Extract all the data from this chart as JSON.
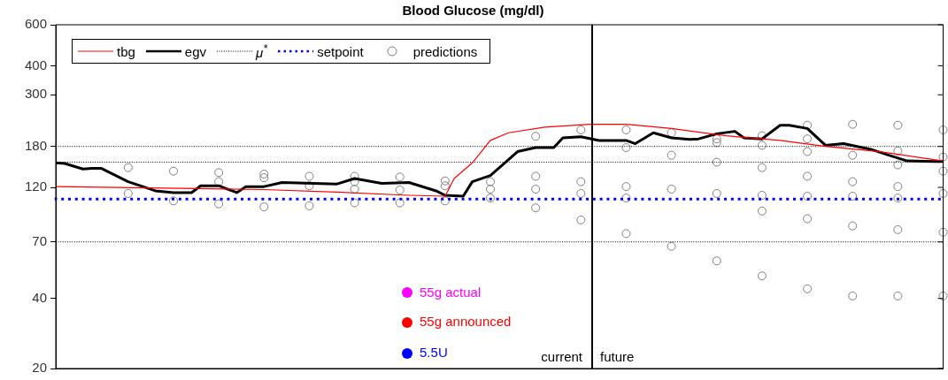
{
  "chart_data": {
    "type": "line",
    "title": "Blood Glucose (mg/dl)",
    "categories": [
      null,
      null,
      null,
      null,
      null,
      null,
      null,
      null,
      null,
      null,
      null,
      null,
      null,
      null,
      null,
      null,
      null,
      null,
      null,
      null,
      null,
      null,
      null,
      null,
      null,
      null,
      null,
      null,
      null,
      null,
      null,
      null,
      null,
      null,
      null,
      null,
      null,
      null,
      null,
      null,
      null,
      null,
      null,
      null,
      null,
      null,
      null,
      null,
      null,
      null,
      null,
      null,
      null,
      null,
      null,
      null,
      null,
      null,
      null,
      null,
      null,
      null,
      null,
      null,
      null,
      null,
      null,
      null,
      null,
      null,
      null,
      null,
      null,
      null,
      null,
      null,
      null,
      null,
      null,
      null,
      null,
      null,
      null,
      null,
      null,
      null,
      null,
      null,
      null,
      null,
      null,
      null,
      null,
      null,
      null,
      null,
      null,
      null,
      null
    ],
    "ylim": [
      20,
      600
    ],
    "yticks": [
      20,
      40,
      70,
      120,
      180,
      300,
      400,
      600
    ],
    "log": "y",
    "tick_labels": "y",
    "legend": "top left",
    "series": [
      {
        "name": "tbg",
        "color": "#ff0000",
        "line_style": "solid",
        "values": [
          121,
          null,
          null,
          null,
          null,
          null,
          null,
          null,
          null,
          null,
          null,
          null,
          null,
          null,
          null,
          null,
          null,
          null,
          null,
          null,
          null,
          null,
          null,
          117.5,
          null,
          null,
          null,
          null,
          null,
          null,
          null,
          114.5,
          null,
          null,
          null,
          null,
          null,
          null,
          null,
          111,
          null,
          null,
          null,
          110,
          131,
          null,
          153,
          null,
          191,
          null,
          206,
          null,
          null,
          null,
          218,
          null,
          null,
          null,
          null,
          224,
          null,
          null,
          null,
          224,
          null,
          null,
          null,
          null,
          215,
          null,
          null,
          null,
          null,
          null,
          200,
          null,
          null,
          null,
          null,
          null,
          191,
          null,
          null,
          null,
          null,
          180,
          null,
          null,
          null,
          null,
          null,
          171,
          null,
          null,
          null,
          null,
          null,
          null,
          156
        ]
      },
      {
        "name": "egv",
        "color": "#000000",
        "line_style": "solid",
        "values": [
          153,
          152,
          null,
          144,
          145,
          145,
          null,
          null,
          127,
          null,
          null,
          116,
          null,
          114,
          null,
          114,
          122,
          null,
          122,
          null,
          114,
          121,
          null,
          121,
          null,
          126,
          null,
          null,
          null,
          null,
          null,
          124,
          null,
          131,
          null,
          null,
          125,
          null,
          null,
          126,
          null,
          null,
          116,
          111,
          null,
          110,
          127,
          null,
          135,
          null,
          null,
          171,
          null,
          178,
          null,
          178,
          196,
          null,
          198,
          null,
          191,
          null,
          null,
          191,
          185,
          null,
          206,
          null,
          196,
          null,
          193,
          194,
          null,
          204,
          null,
          209,
          196,
          null,
          194,
          null,
          222,
          222,
          null,
          215,
          null,
          182,
          null,
          185,
          null,
          null,
          175,
          null,
          165,
          null,
          156,
          null,
          null,
          155,
          155
        ]
      },
      {
        "name": "μ$^{*}$",
        "color": "#000000",
        "line_style": "dotted",
        "values": [
          180,
          null,
          null,
          null,
          null,
          null,
          null,
          null,
          null,
          null,
          null,
          null,
          null,
          null,
          null,
          null,
          null,
          null,
          null,
          null,
          null,
          null,
          null,
          null,
          null,
          null,
          null,
          null,
          null,
          null,
          null,
          null,
          null,
          null,
          null,
          null,
          null,
          null,
          null,
          null,
          null,
          null,
          null,
          null,
          null,
          null,
          null,
          null,
          null,
          null,
          null,
          null,
          null,
          null,
          null,
          null,
          null,
          null,
          null,
          null,
          null,
          null,
          null,
          null,
          null,
          null,
          null,
          null,
          null,
          null,
          null,
          null,
          null,
          null,
          null,
          null,
          null,
          null,
          null,
          null,
          null,
          null,
          null,
          null,
          null,
          null,
          null,
          null,
          null,
          null,
          null,
          null,
          null,
          null,
          null,
          null,
          null,
          null,
          180
        ]
      },
      {
        "color": "#000000",
        "line_style": "dotted",
        "values": [
          154,
          null,
          null,
          null,
          null,
          null,
          null,
          null,
          null,
          null,
          null,
          null,
          null,
          null,
          null,
          null,
          null,
          null,
          null,
          null,
          null,
          null,
          null,
          null,
          null,
          null,
          null,
          null,
          null,
          null,
          null,
          null,
          null,
          null,
          null,
          null,
          null,
          null,
          null,
          null,
          null,
          null,
          null,
          null,
          null,
          null,
          null,
          null,
          null,
          null,
          null,
          null,
          null,
          null,
          null,
          null,
          null,
          null,
          null,
          null,
          null,
          null,
          null,
          null,
          null,
          null,
          null,
          null,
          null,
          null,
          null,
          null,
          null,
          null,
          null,
          null,
          null,
          null,
          null,
          null,
          null,
          null,
          null,
          null,
          null,
          null,
          null,
          null,
          null,
          null,
          null,
          null,
          null,
          null,
          null,
          null,
          null,
          null,
          154
        ]
      },
      {
        "color": "#000000",
        "line_style": "dotted",
        "values": [
          70,
          null,
          null,
          null,
          null,
          null,
          null,
          null,
          null,
          null,
          null,
          null,
          null,
          null,
          null,
          null,
          null,
          null,
          null,
          null,
          null,
          null,
          null,
          null,
          null,
          null,
          null,
          null,
          null,
          null,
          null,
          null,
          null,
          null,
          null,
          null,
          null,
          null,
          null,
          null,
          null,
          null,
          null,
          null,
          null,
          null,
          null,
          null,
          null,
          null,
          null,
          null,
          null,
          null,
          null,
          null,
          null,
          null,
          null,
          null,
          null,
          null,
          null,
          null,
          null,
          null,
          null,
          null,
          null,
          null,
          null,
          null,
          null,
          null,
          null,
          null,
          null,
          null,
          null,
          null,
          null,
          null,
          null,
          null,
          null,
          null,
          null,
          null,
          null,
          null,
          null,
          null,
          null,
          null,
          null,
          null,
          null,
          null,
          70
        ]
      },
      {
        "name": "setpoint",
        "type": "step",
        "color": "#0000ff",
        "line_style": "dotted",
        "values": [
          108.5,
          null,
          null,
          null,
          null,
          null,
          null,
          null,
          null,
          null,
          null,
          null,
          null,
          null,
          null,
          null,
          null,
          null,
          107,
          null,
          null,
          null,
          null,
          null,
          null,
          null,
          null,
          null,
          null,
          null,
          null,
          null,
          null,
          null,
          null,
          null,
          null,
          null,
          null,
          null,
          null,
          null,
          null,
          null,
          null,
          null,
          null,
          null,
          null,
          null,
          null,
          null,
          null,
          null,
          null,
          null,
          null,
          null,
          null,
          null,
          null,
          null,
          null,
          null,
          null,
          null,
          null,
          null,
          null,
          null,
          null,
          null,
          null,
          null,
          null,
          null,
          null,
          null,
          null,
          null,
          null,
          null,
          null,
          null,
          null,
          null,
          null,
          null,
          null,
          null,
          null,
          null,
          null,
          null,
          null,
          null,
          null,
          null,
          107
        ]
      },
      {
        "name": "predictions",
        "type": "scatter",
        "marker": "circle",
        "color": "#808080",
        "values": [
          null,
          null,
          null,
          null,
          null,
          null,
          null,
          null,
          146,
          null,
          null,
          null,
          null,
          141,
          null,
          null,
          null,
          null,
          139,
          null,
          null,
          null,
          null,
          137,
          null,
          null,
          null,
          null,
          134,
          null,
          null,
          null,
          null,
          134,
          null,
          null,
          null,
          null,
          133,
          null,
          null,
          null,
          null,
          128,
          null,
          null,
          null,
          null,
          127,
          null,
          null,
          null,
          null,
          199,
          null,
          null,
          null,
          null,
          212,
          null,
          null,
          null,
          null,
          212,
          null,
          null,
          null,
          null,
          206,
          null,
          null,
          null,
          null,
          194,
          null,
          null,
          null,
          null,
          200,
          null,
          null,
          null,
          null,
          222,
          null,
          null,
          null,
          null,
          224,
          null,
          null,
          null,
          null,
          222,
          null,
          null,
          null,
          null,
          212
        ]
      },
      {
        "type": "scatter",
        "marker": "circle",
        "color": "#808080",
        "values": [
          null,
          null,
          null,
          null,
          null,
          null,
          null,
          null,
          113,
          null,
          null,
          null,
          null,
          105,
          null,
          null,
          null,
          null,
          127,
          null,
          null,
          null,
          null,
          132,
          null,
          null,
          null,
          null,
          122,
          null,
          null,
          null,
          null,
          127,
          null,
          null,
          null,
          null,
          117,
          null,
          null,
          null,
          null,
          122,
          null,
          null,
          null,
          null,
          118,
          null,
          null,
          null,
          null,
          134,
          null,
          null,
          null,
          null,
          127,
          null,
          null,
          null,
          null,
          178,
          null,
          null,
          null,
          null,
          165,
          null,
          null,
          null,
          null,
          187,
          null,
          null,
          null,
          null,
          182,
          null,
          null,
          null,
          null,
          194,
          null,
          null,
          null,
          null,
          165,
          null,
          null,
          null,
          null,
          172,
          null,
          null,
          null,
          null,
          162
        ]
      },
      {
        "type": "scatter",
        "marker": "circle",
        "color": "#808080",
        "values": [
          null,
          null,
          null,
          null,
          null,
          null,
          null,
          null,
          null,
          null,
          null,
          null,
          null,
          null,
          null,
          null,
          null,
          null,
          102,
          null,
          null,
          null,
          null,
          99,
          null,
          null,
          null,
          null,
          100,
          null,
          null,
          null,
          null,
          118,
          null,
          null,
          null,
          null,
          103,
          null,
          null,
          null,
          null,
          105,
          null,
          null,
          null,
          null,
          108,
          null,
          null,
          null,
          null,
          118,
          null,
          null,
          null,
          null,
          113,
          null,
          null,
          null,
          null,
          121,
          null,
          null,
          null,
          null,
          118,
          null,
          null,
          null,
          null,
          154,
          null,
          null,
          null,
          null,
          146,
          null,
          null,
          null,
          null,
          171,
          null,
          null,
          null,
          null,
          127,
          null,
          null,
          null,
          null,
          150,
          null,
          null,
          null,
          null,
          141
        ]
      },
      {
        "type": "scatter",
        "marker": "circle",
        "color": "#808080",
        "values": [
          null,
          null,
          null,
          null,
          null,
          null,
          null,
          null,
          null,
          null,
          null,
          null,
          null,
          null,
          null,
          null,
          null,
          null,
          null,
          null,
          null,
          null,
          null,
          null,
          null,
          null,
          null,
          null,
          null,
          null,
          null,
          null,
          null,
          103,
          null,
          null,
          null,
          null,
          null,
          null,
          null,
          null,
          null,
          null,
          null,
          null,
          null,
          null,
          null,
          null,
          null,
          null,
          null,
          98,
          null,
          null,
          null,
          null,
          87,
          null,
          null,
          null,
          null,
          108,
          null,
          null,
          null,
          null,
          67,
          null,
          null,
          null,
          null,
          113,
          null,
          null,
          null,
          null,
          111,
          null,
          null,
          null,
          null,
          134,
          null,
          null,
          null,
          null,
          110,
          null,
          null,
          null,
          null,
          121,
          null,
          null,
          null,
          null,
          113
        ]
      },
      {
        "type": "scatter",
        "marker": "circle",
        "color": "#808080",
        "values": [
          null,
          null,
          null,
          null,
          null,
          null,
          null,
          null,
          null,
          null,
          null,
          null,
          null,
          null,
          null,
          null,
          null,
          null,
          null,
          null,
          null,
          null,
          null,
          null,
          null,
          null,
          null,
          null,
          null,
          null,
          null,
          null,
          null,
          null,
          null,
          null,
          null,
          null,
          null,
          null,
          null,
          null,
          null,
          null,
          null,
          null,
          null,
          null,
          null,
          null,
          null,
          null,
          null,
          null,
          null,
          null,
          null,
          null,
          null,
          null,
          null,
          null,
          null,
          76,
          null,
          null,
          null,
          null,
          null,
          null,
          null,
          null,
          null,
          58,
          null,
          null,
          null,
          null,
          95,
          null,
          null,
          null,
          null,
          110,
          null,
          null,
          null,
          null,
          82,
          null,
          null,
          null,
          null,
          108,
          null,
          null,
          null,
          null,
          77
        ]
      },
      {
        "type": "scatter",
        "marker": "circle",
        "color": "#808080",
        "values": [
          null,
          null,
          null,
          null,
          null,
          null,
          null,
          null,
          null,
          null,
          null,
          null,
          null,
          null,
          null,
          null,
          null,
          null,
          null,
          null,
          null,
          null,
          null,
          null,
          null,
          null,
          null,
          null,
          null,
          null,
          null,
          null,
          null,
          null,
          null,
          null,
          null,
          null,
          null,
          null,
          null,
          null,
          null,
          null,
          null,
          null,
          null,
          null,
          null,
          null,
          null,
          null,
          null,
          null,
          null,
          null,
          null,
          null,
          null,
          null,
          null,
          null,
          null,
          null,
          null,
          null,
          null,
          null,
          null,
          null,
          null,
          null,
          null,
          null,
          null,
          null,
          null,
          null,
          50,
          null,
          null,
          null,
          null,
          88,
          null,
          null,
          null,
          null,
          41,
          null,
          null,
          null,
          null,
          79,
          null,
          null,
          null,
          null,
          41
        ]
      },
      {
        "type": "scatter",
        "marker": "circle",
        "color": "#808080",
        "values": [
          null,
          null,
          null,
          null,
          null,
          null,
          null,
          null,
          null,
          null,
          null,
          null,
          null,
          null,
          null,
          null,
          null,
          null,
          null,
          null,
          null,
          null,
          null,
          null,
          null,
          null,
          null,
          null,
          null,
          null,
          null,
          null,
          null,
          null,
          null,
          null,
          null,
          null,
          null,
          null,
          null,
          null,
          null,
          null,
          null,
          null,
          null,
          null,
          null,
          null,
          null,
          null,
          null,
          null,
          null,
          null,
          null,
          null,
          null,
          null,
          null,
          null,
          null,
          null,
          null,
          null,
          null,
          null,
          null,
          null,
          null,
          null,
          null,
          null,
          null,
          null,
          null,
          null,
          null,
          null,
          null,
          null,
          null,
          44,
          null,
          null,
          null,
          null,
          null,
          null,
          null,
          null,
          null,
          41,
          null,
          null,
          null,
          null,
          null
        ]
      }
    ],
    "annotations": [
      "current",
      "future",
      "55g actual",
      "55g announced",
      "5.5U"
    ]
  }
}
